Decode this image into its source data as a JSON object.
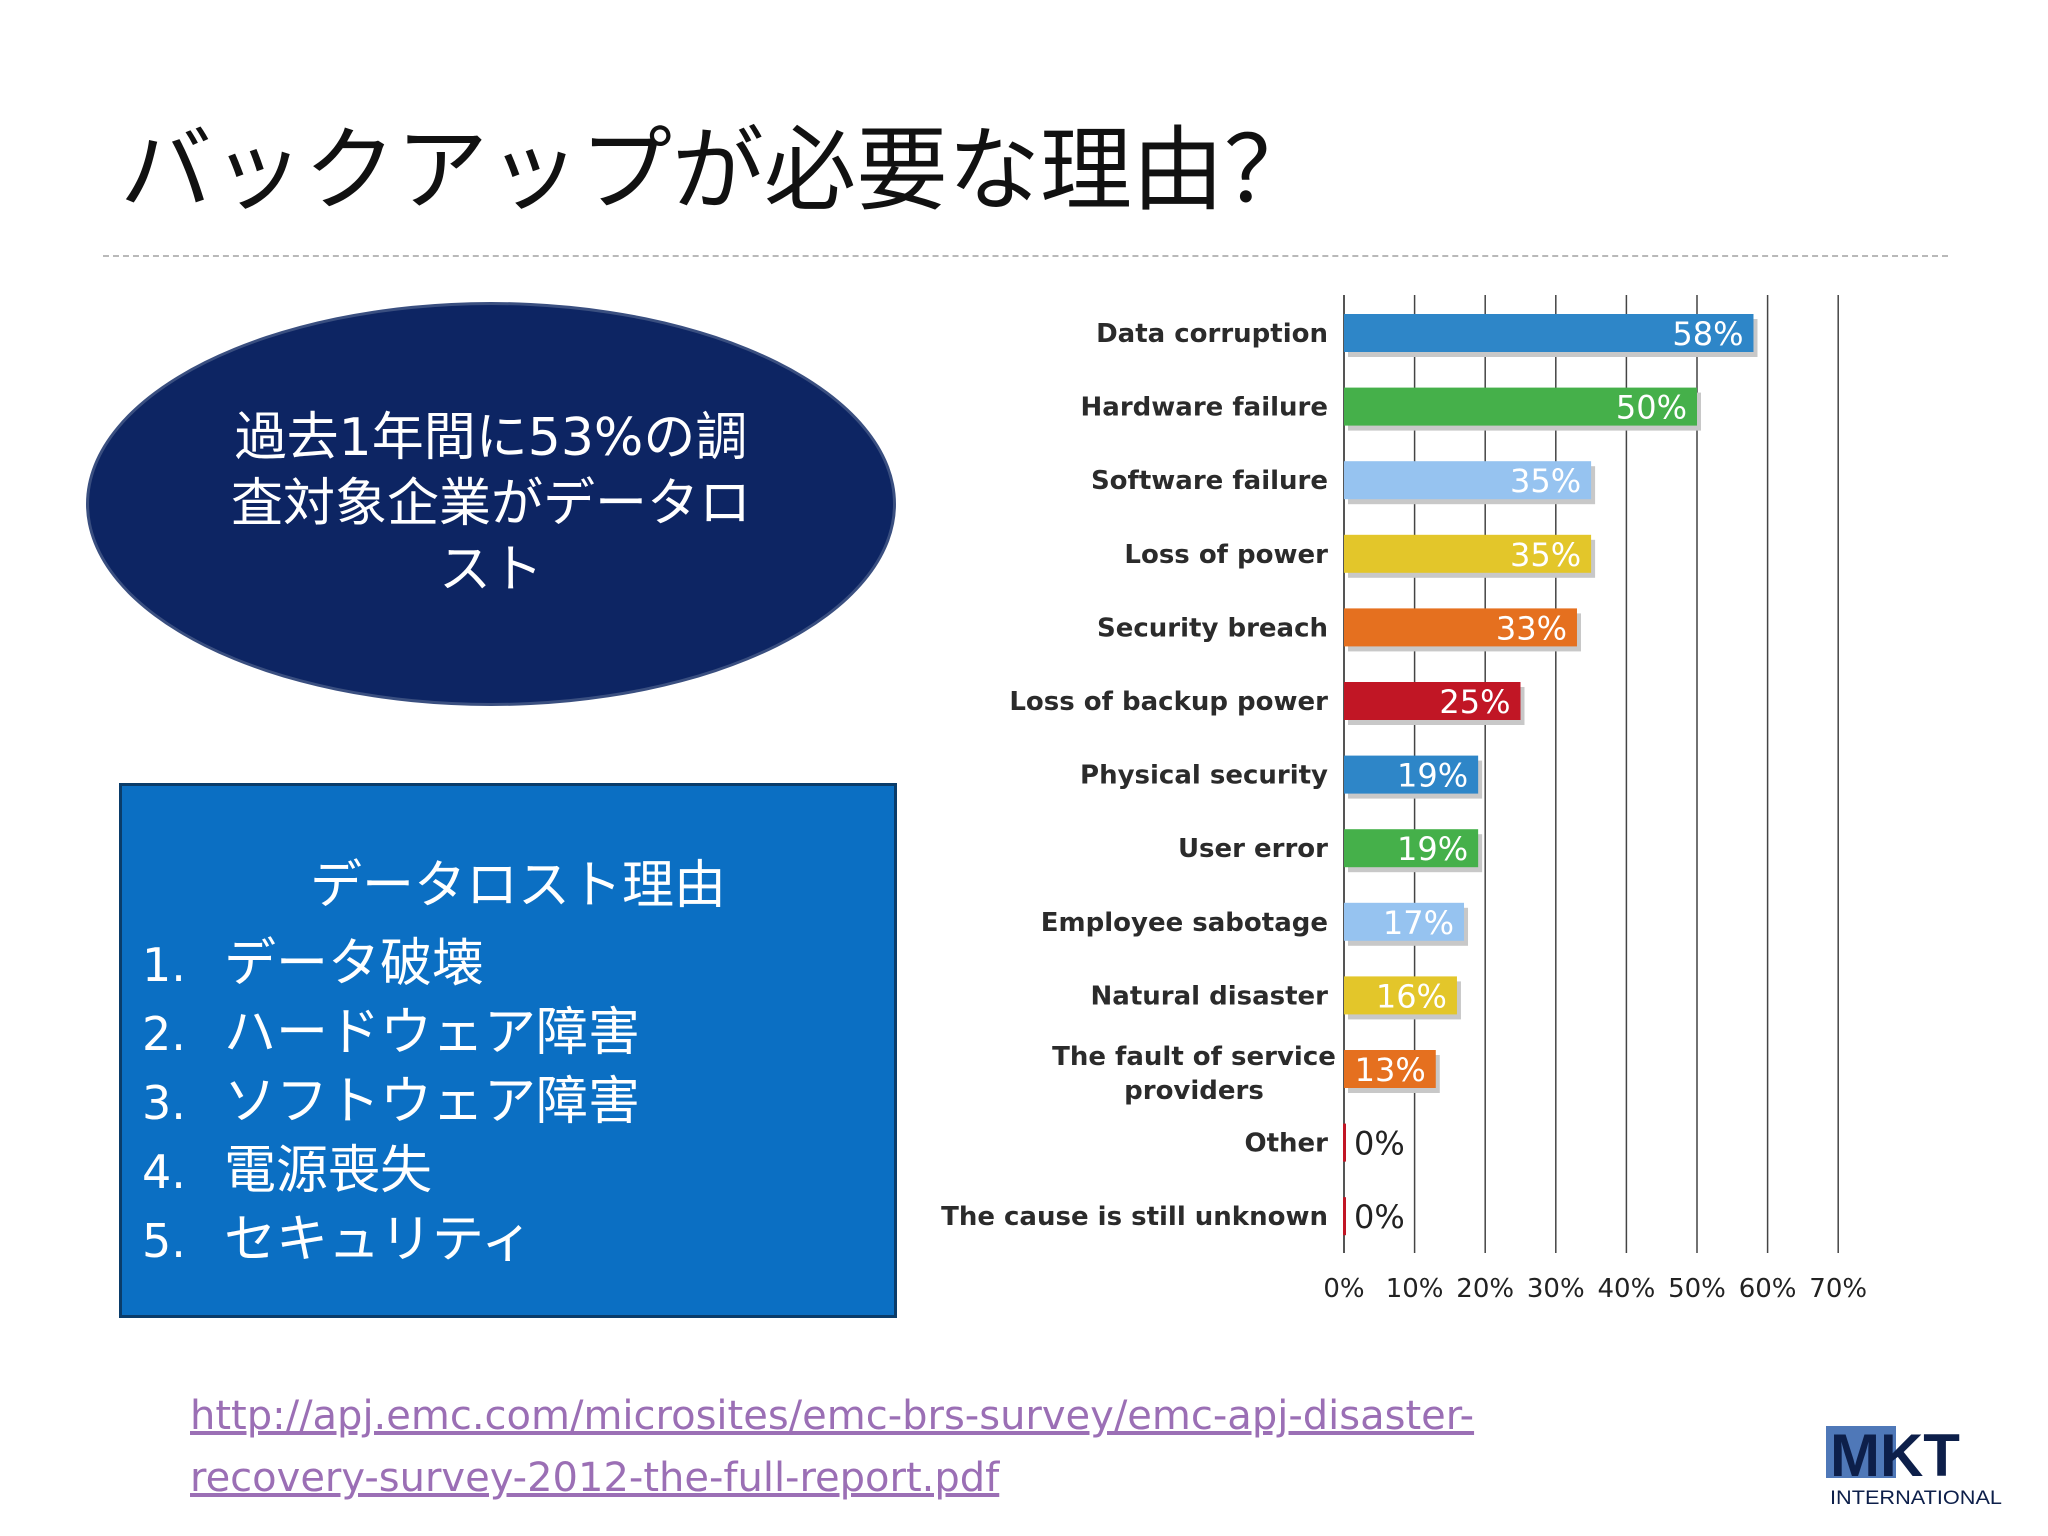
{
  "slide": {
    "title": "バックアップが必要な理由？"
  },
  "ellipse": {
    "text": "過去1年間に53%の調査対象企業がデータロスト"
  },
  "reasons_box": {
    "heading": "データロスト理由",
    "items": [
      {
        "num": "1.",
        "text": "データ破壊"
      },
      {
        "num": "2.",
        "text": "ハードウェア障害"
      },
      {
        "num": "3.",
        "text": "ソフトウェア障害"
      },
      {
        "num": "4.",
        "text": "電源喪失"
      },
      {
        "num": "5.",
        "text": "セキュリティ"
      }
    ]
  },
  "source": {
    "line1": "http://apj.emc.com/microsites/emc-brs-survey/emc-apj-disaster-",
    "line2": "recovery-survey-2012-the-full-report.pdf"
  },
  "logo": {
    "text": "MKT",
    "subtext": "INTERNATIONAL"
  },
  "chart_data": {
    "type": "bar",
    "orientation": "horizontal",
    "title": "",
    "xlabel": "",
    "ylabel": "",
    "xlim": [
      0,
      70
    ],
    "grid": true,
    "x_ticks": [
      "0%",
      "10%",
      "20%",
      "30%",
      "40%",
      "50%",
      "60%",
      "70%"
    ],
    "categories": [
      "Data corruption",
      "Hardware failure",
      "Software failure",
      "Loss of power",
      "Security breach",
      "Loss of backup power",
      "Physical security",
      "User error",
      "Employee sabotage",
      "Natural disaster",
      "The fault of service providers",
      "Other",
      "The cause is still unknown"
    ],
    "values": [
      58,
      50,
      35,
      35,
      33,
      25,
      19,
      19,
      17,
      16,
      13,
      0,
      0
    ],
    "value_labels": [
      "58%",
      "50%",
      "35%",
      "35%",
      "33%",
      "25%",
      "19%",
      "19%",
      "17%",
      "16%",
      "13%",
      "0%",
      "0%"
    ],
    "colors": [
      "#2e86c8",
      "#45b04a",
      "#96c3f0",
      "#e3c62a",
      "#e5701f",
      "#c11625",
      "#2e86c8",
      "#45b04a",
      "#96c3f0",
      "#e3c62a",
      "#e5701f",
      "#c11625",
      "#c11625"
    ]
  }
}
